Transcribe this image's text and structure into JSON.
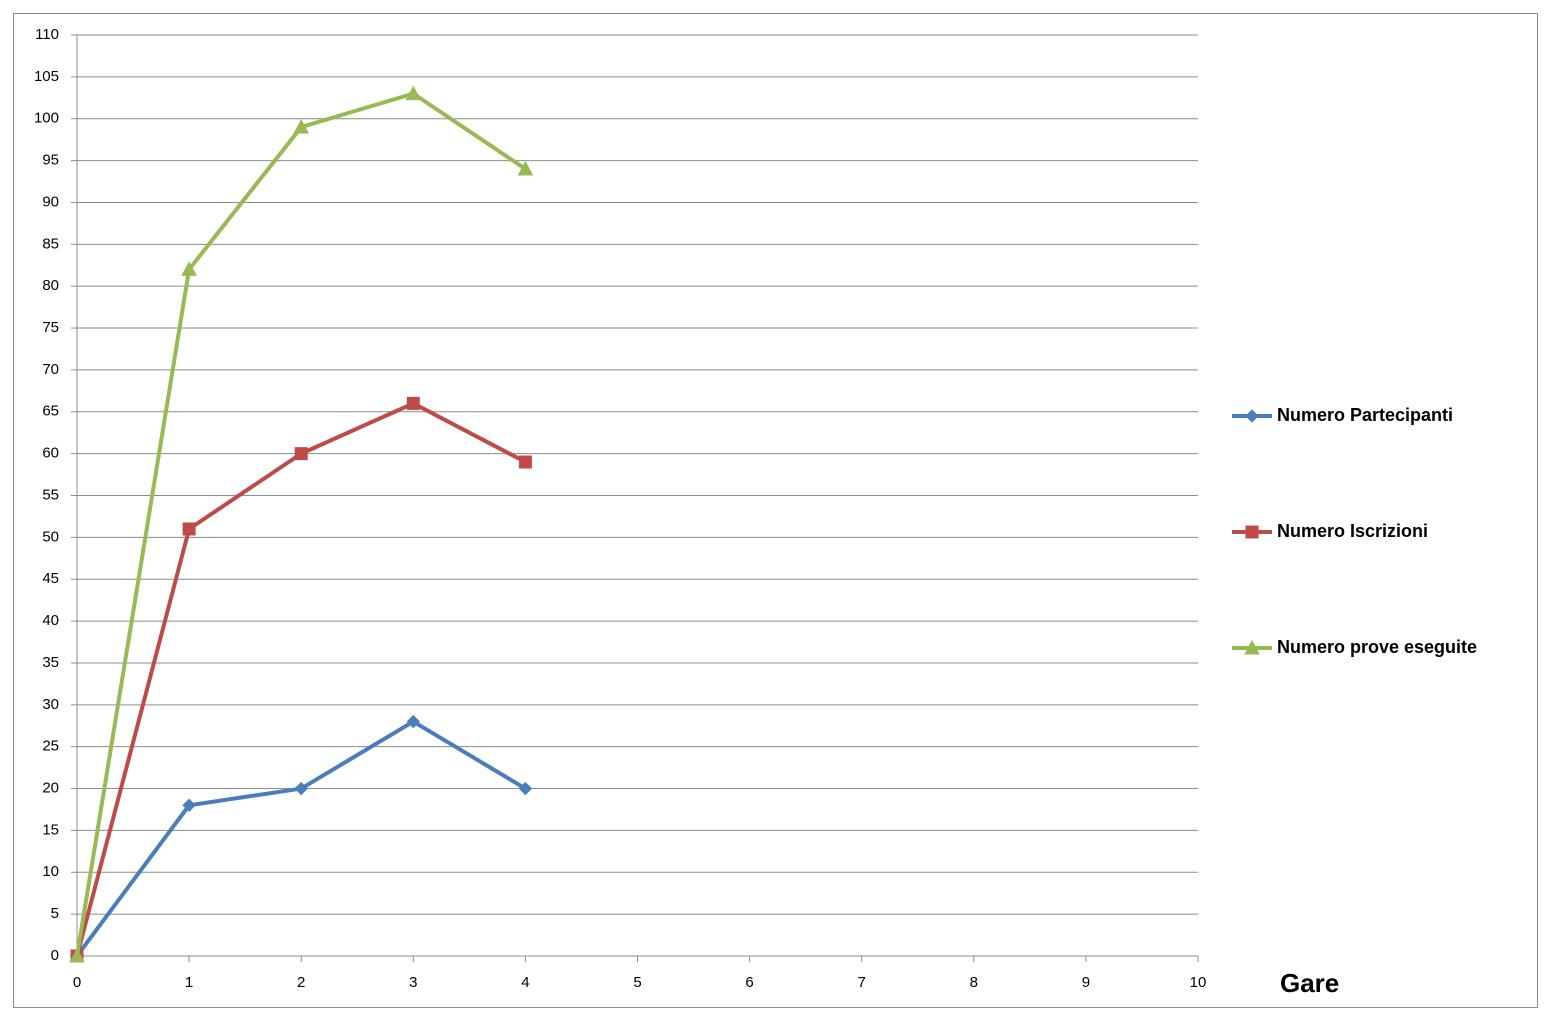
{
  "chart_data": {
    "type": "line",
    "x_label": "Gare",
    "x": [
      0,
      1,
      2,
      3,
      4
    ],
    "series": [
      {
        "name": "Numero Partecipanti",
        "color": "#4a7ebb",
        "marker": "diamond",
        "values": [
          0,
          18,
          20,
          28,
          20
        ]
      },
      {
        "name": "Numero Iscrizioni",
        "color": "#be4b48",
        "marker": "square",
        "values": [
          0,
          51,
          60,
          66,
          59
        ]
      },
      {
        "name": "Numero prove eseguite",
        "color": "#98b954",
        "marker": "triangle",
        "values": [
          0,
          82,
          99,
          103,
          94
        ]
      }
    ],
    "xlim": [
      0,
      10
    ],
    "xticks": [
      0,
      1,
      2,
      3,
      4,
      5,
      6,
      7,
      8,
      9,
      10
    ],
    "ylim": [
      0,
      110
    ],
    "yticks": [
      0,
      5,
      10,
      15,
      20,
      25,
      30,
      35,
      40,
      45,
      50,
      55,
      60,
      65,
      70,
      75,
      80,
      85,
      90,
      95,
      100,
      105,
      110
    ],
    "grid": true,
    "legend": "right"
  }
}
